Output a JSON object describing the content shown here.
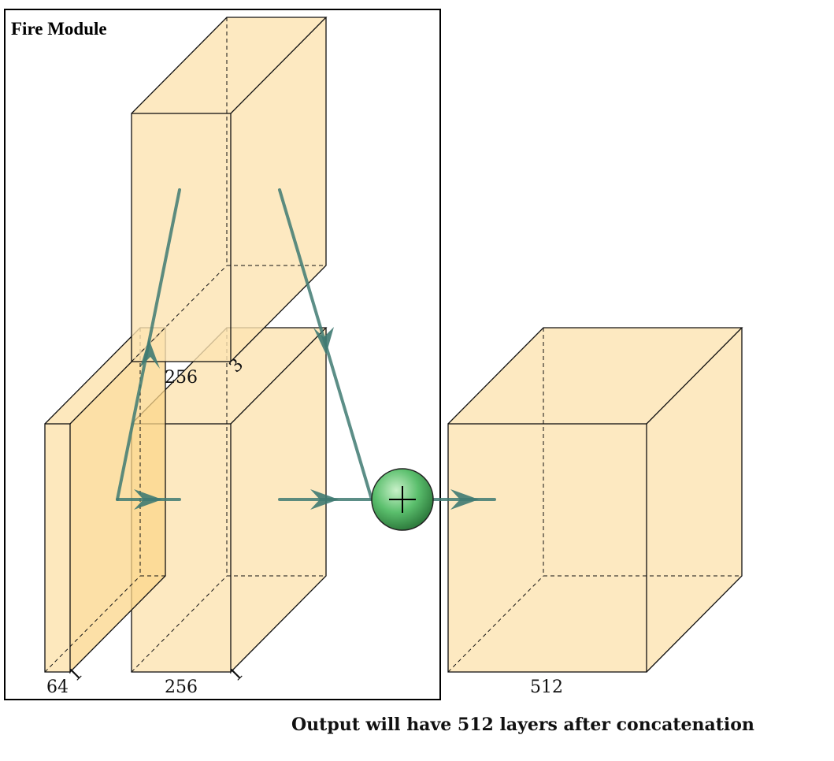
{
  "title": "Fire Module",
  "caption": "Output will have 512 layers after concatenation",
  "colors": {
    "block_fill": "#fde4b2",
    "arrow": "#3f7a72",
    "node_fill": "#5bbf6d"
  },
  "blocks": {
    "squeeze": {
      "depth_label": "64",
      "kernel_label": "1"
    },
    "expand_1x1": {
      "depth_label": "256",
      "kernel_label": "1"
    },
    "expand_3x3": {
      "depth_label": "256",
      "kernel_label": "3"
    },
    "output": {
      "depth_label": "512"
    }
  },
  "concat_node": {
    "symbol": "+"
  }
}
